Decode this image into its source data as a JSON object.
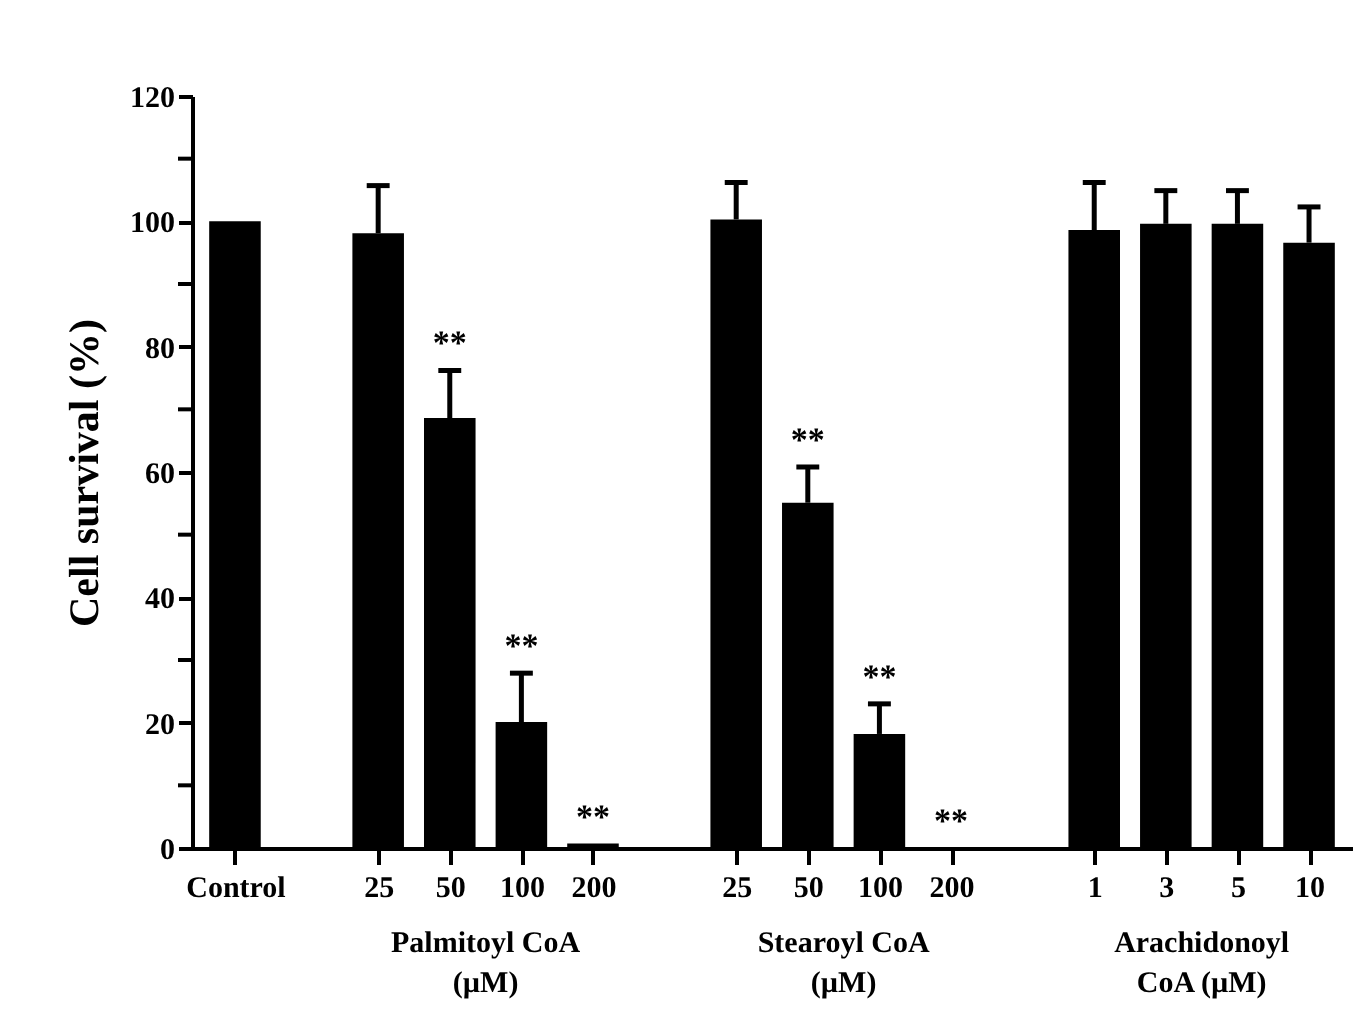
{
  "chart_data": {
    "type": "bar",
    "ylabel": "Cell survival (%)",
    "categories": [
      "Control",
      null,
      "25",
      "50",
      "100",
      "200",
      null,
      "25",
      "50",
      "100",
      "200",
      null,
      "1",
      "3",
      "5",
      "10"
    ],
    "values": [
      100,
      null,
      98.1,
      68.6,
      20.1,
      0.7,
      null,
      100.3,
      55.1,
      18.2,
      0,
      null,
      98.6,
      99.6,
      99.6,
      96.6
    ],
    "errors": [
      null,
      null,
      [
        98.1,
        105.7
      ],
      [
        68.6,
        76.2
      ],
      [
        20.1,
        27.9
      ],
      null,
      null,
      [
        100.3,
        106.2
      ],
      [
        55.1,
        60.8
      ],
      [
        18.2,
        23.0
      ],
      null,
      null,
      [
        98.6,
        106.2
      ],
      [
        99.6,
        104.9
      ],
      [
        99.6,
        104.9
      ],
      [
        96.6,
        102.3
      ]
    ],
    "value_labels": [
      null,
      null,
      null,
      "**",
      "**",
      "**",
      null,
      null,
      "**",
      "**",
      "**",
      null,
      null,
      null,
      null,
      null
    ],
    "color": "#000000",
    "ylim": [
      0,
      120
    ],
    "yticks": [
      0,
      {
        "value": 10,
        "label": null
      },
      20,
      {
        "value": 30,
        "label": null
      },
      40,
      {
        "value": 50,
        "label": null
      },
      60,
      {
        "value": 70,
        "label": null
      },
      80,
      {
        "value": 90,
        "label": null
      },
      100,
      {
        "value": 110,
        "label": null
      },
      120
    ],
    "annotations": [
      "Palmitoyl  CoA\n(µM)",
      "Stearoyl  CoA\n(µM)",
      "Arachidonoyl\nCoA  (µM)"
    ]
  }
}
